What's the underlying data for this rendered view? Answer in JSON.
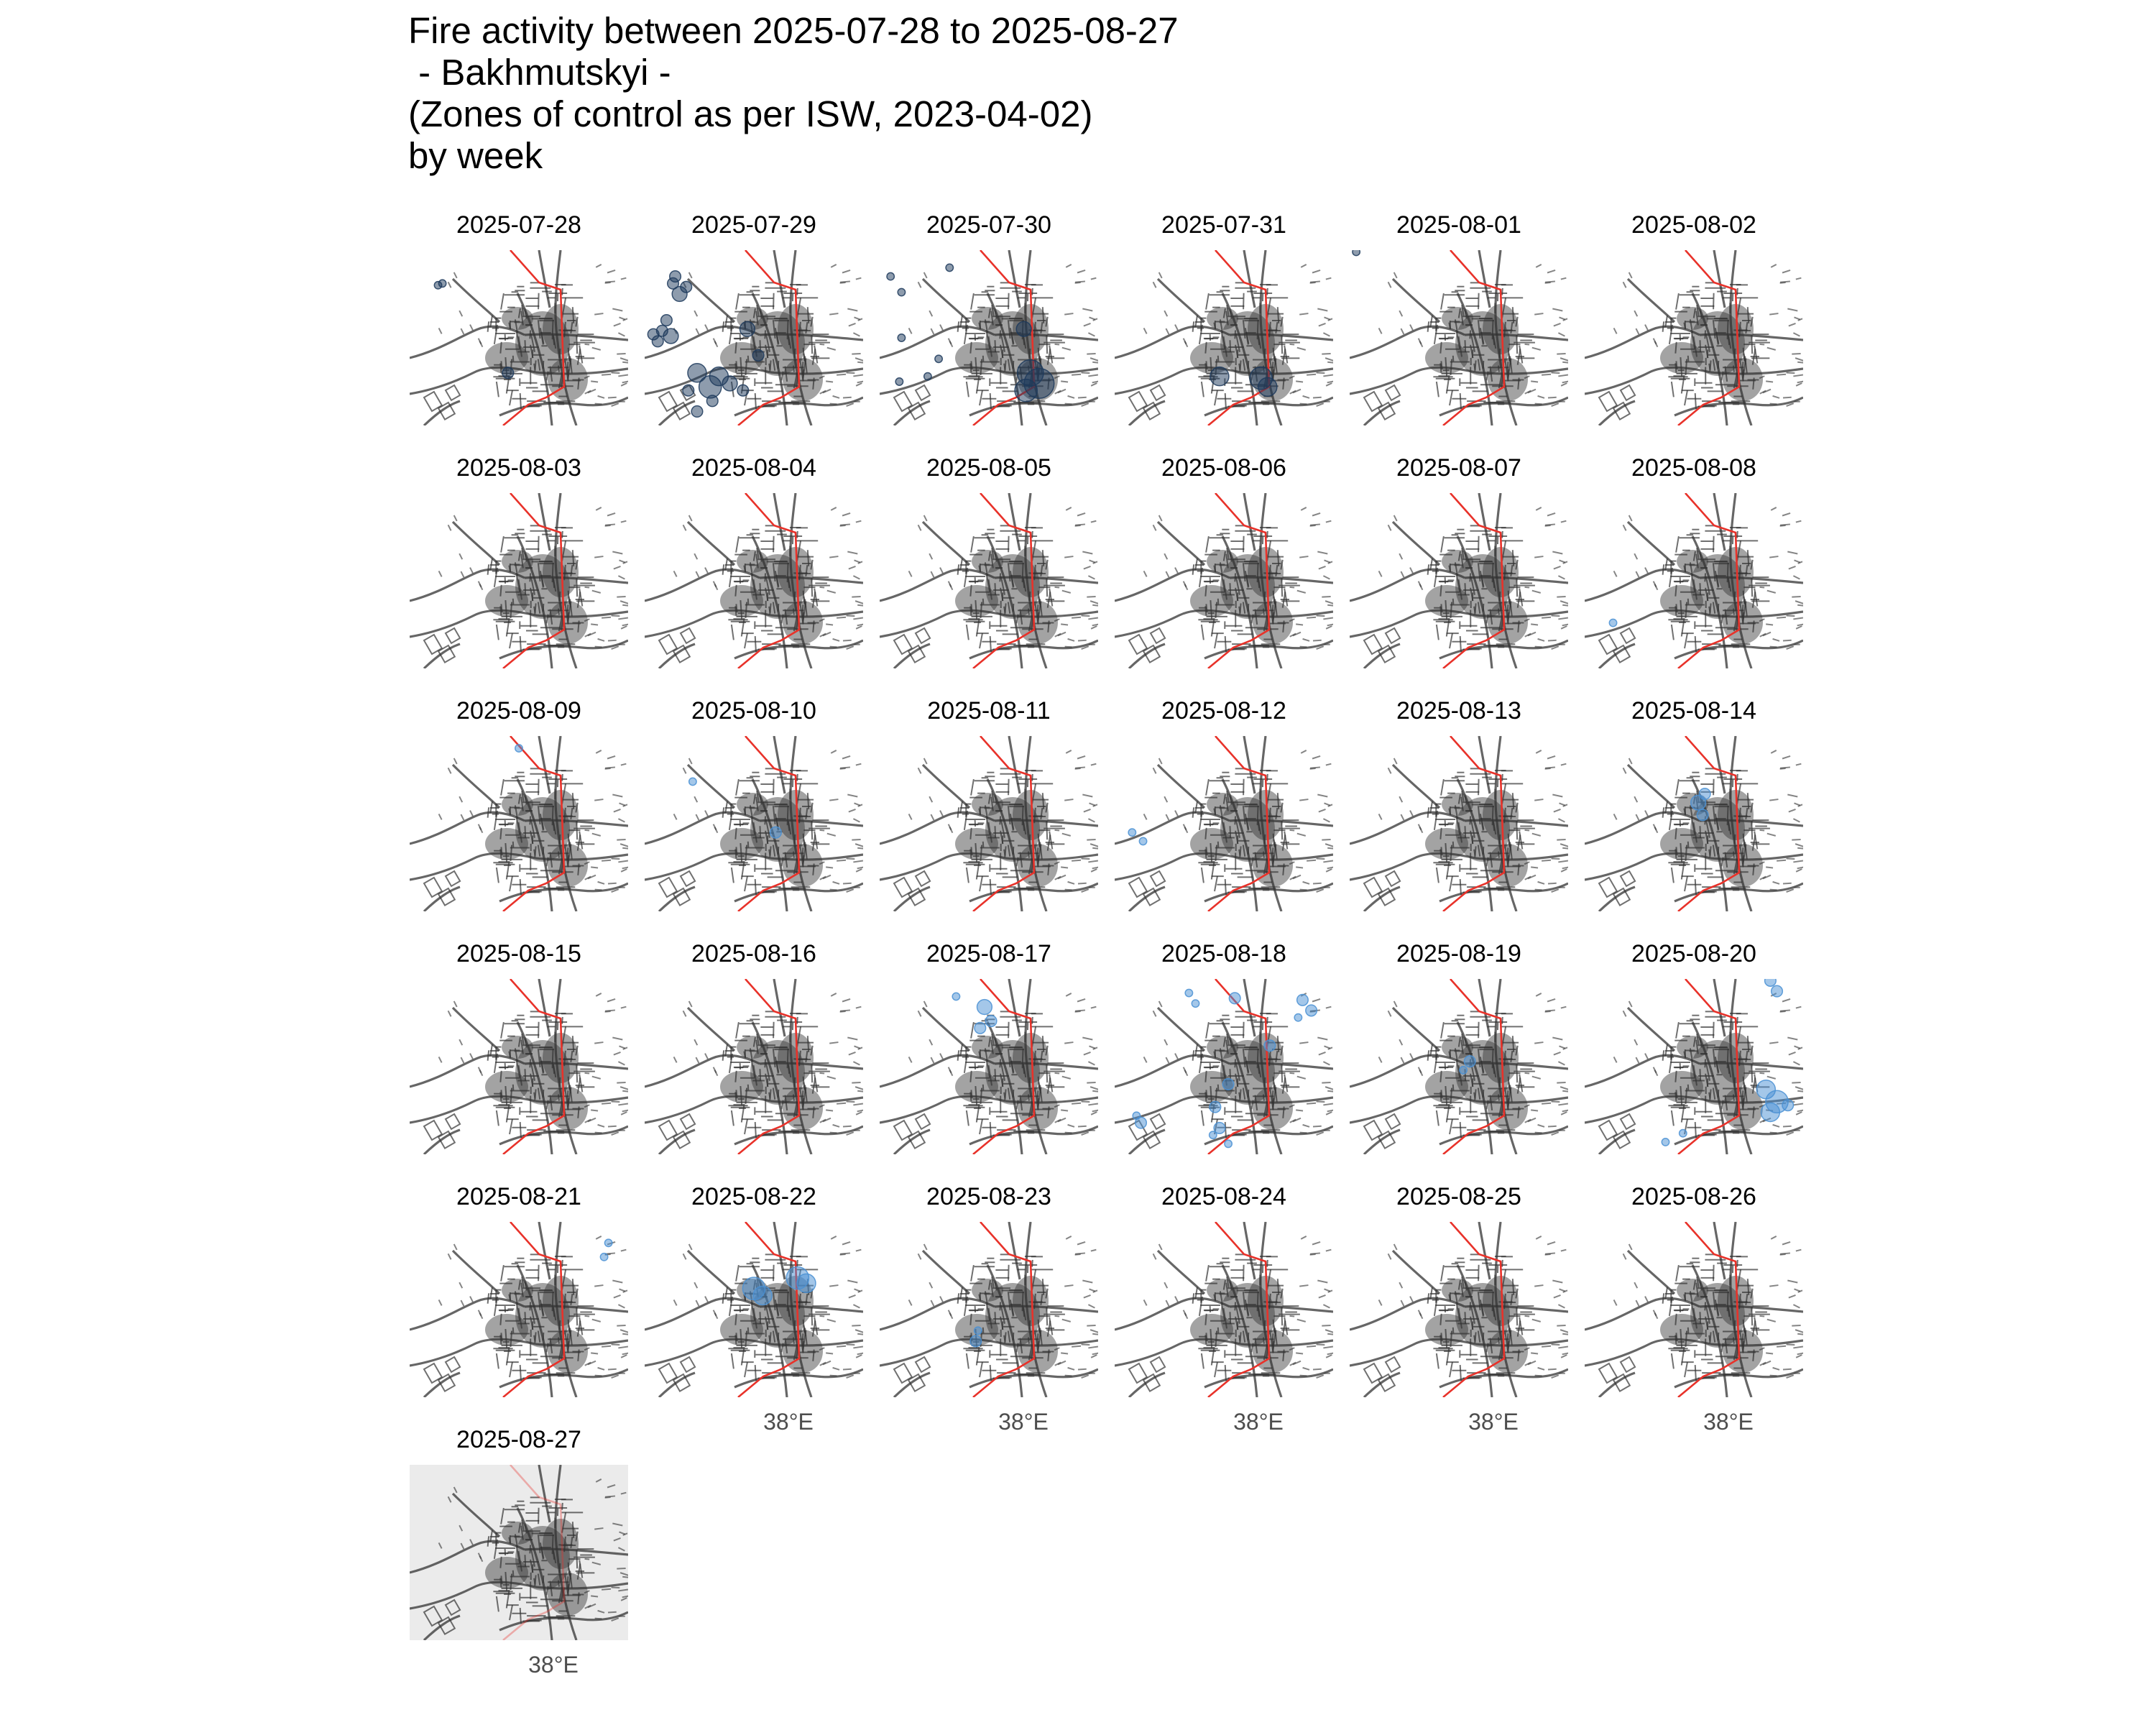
{
  "title": {
    "line1": "Fire activity between 2025-07-28 to 2025-08-27",
    "line2": " - Bakhmutskyi -",
    "line3": "(Zones of control as per ISW, 2023-04-02)",
    "line4": "by week"
  },
  "x_tick_label": "38°E",
  "colors": {
    "road": "#333333",
    "control_line": "#e8322a",
    "fire_early": "#1d3a5c",
    "fire_late": "#4a90d4",
    "last_panel_bg": "#ebebeb"
  },
  "panels": [
    {
      "date": "2025-07-28",
      "fires": [
        [
          0.13,
          0.2,
          2
        ],
        [
          0.15,
          0.19,
          2
        ],
        [
          0.45,
          0.7,
          3
        ]
      ]
    },
    {
      "date": "2025-07-29",
      "fires": [
        [
          0.04,
          0.48,
          3
        ],
        [
          0.08,
          0.46,
          3
        ],
        [
          0.12,
          0.49,
          4
        ],
        [
          0.06,
          0.52,
          3
        ],
        [
          0.1,
          0.4,
          3
        ],
        [
          0.13,
          0.19,
          3
        ],
        [
          0.16,
          0.25,
          4
        ],
        [
          0.14,
          0.15,
          3
        ],
        [
          0.19,
          0.21,
          3
        ],
        [
          0.24,
          0.7,
          5
        ],
        [
          0.3,
          0.78,
          6
        ],
        [
          0.34,
          0.72,
          5
        ],
        [
          0.39,
          0.76,
          4
        ],
        [
          0.31,
          0.86,
          3
        ],
        [
          0.2,
          0.8,
          3
        ],
        [
          0.24,
          0.92,
          3
        ],
        [
          0.45,
          0.8,
          3
        ],
        [
          0.47,
          0.45,
          4
        ],
        [
          0.52,
          0.6,
          3
        ]
      ]
    },
    {
      "date": "2025-07-30",
      "fires": [
        [
          0.05,
          0.15,
          2
        ],
        [
          0.1,
          0.24,
          2
        ],
        [
          0.32,
          0.1,
          2
        ],
        [
          0.1,
          0.5,
          2
        ],
        [
          0.27,
          0.62,
          2
        ],
        [
          0.22,
          0.72,
          2
        ],
        [
          0.09,
          0.75,
          2
        ],
        [
          0.66,
          0.45,
          4
        ],
        [
          0.69,
          0.7,
          7
        ],
        [
          0.73,
          0.76,
          8
        ],
        [
          0.67,
          0.8,
          6
        ]
      ]
    },
    {
      "date": "2025-07-31",
      "fires": [
        [
          0.48,
          0.72,
          5
        ],
        [
          0.67,
          0.73,
          6
        ],
        [
          0.7,
          0.78,
          5
        ]
      ]
    },
    {
      "date": "2025-08-01",
      "fires": [
        [
          0.03,
          0.01,
          2
        ]
      ]
    },
    {
      "date": "2025-08-02",
      "fires": []
    },
    {
      "date": "2025-08-03",
      "fires": []
    },
    {
      "date": "2025-08-04",
      "fires": []
    },
    {
      "date": "2025-08-05",
      "fires": []
    },
    {
      "date": "2025-08-06",
      "fires": []
    },
    {
      "date": "2025-08-07",
      "fires": []
    },
    {
      "date": "2025-08-08",
      "fires": [
        [
          0.13,
          0.74,
          2
        ]
      ]
    },
    {
      "date": "2025-08-09",
      "fires": [
        [
          0.5,
          0.07,
          2
        ]
      ]
    },
    {
      "date": "2025-08-10",
      "fires": [
        [
          0.22,
          0.26,
          2
        ],
        [
          0.6,
          0.55,
          3
        ]
      ]
    },
    {
      "date": "2025-08-11",
      "fires": []
    },
    {
      "date": "2025-08-12",
      "fires": [
        [
          0.08,
          0.55,
          2
        ],
        [
          0.13,
          0.6,
          2
        ]
      ]
    },
    {
      "date": "2025-08-13",
      "fires": []
    },
    {
      "date": "2025-08-14",
      "fires": [
        [
          0.52,
          0.38,
          4
        ],
        [
          0.55,
          0.33,
          3
        ],
        [
          0.54,
          0.45,
          3
        ]
      ]
    },
    {
      "date": "2025-08-15",
      "fires": []
    },
    {
      "date": "2025-08-16",
      "fires": []
    },
    {
      "date": "2025-08-17",
      "fires": [
        [
          0.35,
          0.1,
          2
        ],
        [
          0.48,
          0.16,
          4
        ],
        [
          0.51,
          0.24,
          3
        ],
        [
          0.46,
          0.28,
          3
        ]
      ]
    },
    {
      "date": "2025-08-18",
      "fires": [
        [
          0.34,
          0.08,
          2
        ],
        [
          0.37,
          0.14,
          2
        ],
        [
          0.55,
          0.11,
          3
        ],
        [
          0.86,
          0.12,
          3
        ],
        [
          0.9,
          0.18,
          3
        ],
        [
          0.84,
          0.22,
          2
        ],
        [
          0.71,
          0.38,
          3
        ],
        [
          0.52,
          0.6,
          3
        ],
        [
          0.46,
          0.73,
          3
        ],
        [
          0.48,
          0.85,
          3
        ],
        [
          0.12,
          0.82,
          3
        ],
        [
          0.1,
          0.78,
          2
        ],
        [
          0.52,
          0.94,
          2
        ],
        [
          0.45,
          0.89,
          2
        ]
      ]
    },
    {
      "date": "2025-08-19",
      "fires": [
        [
          0.55,
          0.47,
          3
        ],
        [
          0.52,
          0.52,
          2
        ]
      ]
    },
    {
      "date": "2025-08-20",
      "fires": [
        [
          0.85,
          0.01,
          3
        ],
        [
          0.88,
          0.07,
          3
        ],
        [
          0.83,
          0.63,
          5
        ],
        [
          0.88,
          0.7,
          6
        ],
        [
          0.85,
          0.76,
          5
        ],
        [
          0.93,
          0.72,
          3
        ],
        [
          0.37,
          0.93,
          2
        ],
        [
          0.45,
          0.88,
          2
        ]
      ]
    },
    {
      "date": "2025-08-21",
      "fires": [
        [
          0.91,
          0.12,
          2
        ],
        [
          0.89,
          0.2,
          2
        ]
      ]
    },
    {
      "date": "2025-08-22",
      "fires": [
        [
          0.5,
          0.38,
          6
        ],
        [
          0.54,
          0.42,
          5
        ],
        [
          0.7,
          0.32,
          6
        ],
        [
          0.74,
          0.35,
          5
        ]
      ]
    },
    {
      "date": "2025-08-23",
      "fires": [
        [
          0.44,
          0.68,
          3
        ],
        [
          0.45,
          0.62,
          2
        ]
      ]
    },
    {
      "date": "2025-08-24",
      "fires": []
    },
    {
      "date": "2025-08-25",
      "fires": []
    },
    {
      "date": "2025-08-26",
      "fires": []
    },
    {
      "date": "2025-08-27",
      "fires": []
    }
  ]
}
